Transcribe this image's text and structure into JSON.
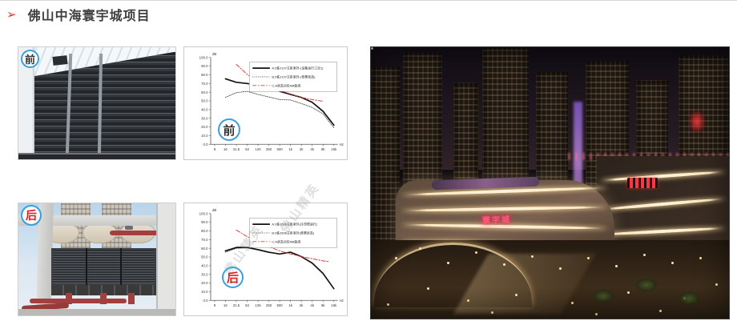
{
  "title": {
    "bullet": "➢",
    "text": "佛山中海寰宇城项目"
  },
  "colors": {
    "title_text": "#3f3f3f",
    "accent_red": "#e8372c",
    "badge_ring_blue": "#3aa0dc",
    "badge_before_text": "#333333",
    "badge_after_text": "#e02020",
    "chart_line_black": "#111111",
    "chart_line_red": "#e23b3b"
  },
  "photos": {
    "before": {
      "badge_label": "前"
    },
    "after": {
      "badge_label": "后"
    },
    "mall": {
      "sign_text": "寰宇城"
    }
  },
  "watermark": {
    "text": "佛山精英"
  },
  "chart_data": [
    {
      "type": "line",
      "badge_label": "前",
      "y_unit": "dB",
      "x_unit": "Hz",
      "ylim": [
        0,
        100
      ],
      "y_ticks": [
        "0.0",
        "10.0",
        "20.0",
        "30.0",
        "40.0",
        "50.0",
        "60.0",
        "70.0",
        "80.0",
        "90.0",
        "100.0"
      ],
      "x_categories": [
        "8",
        "16",
        "31.5",
        "63",
        "125",
        "250",
        "500",
        "1k",
        "2k",
        "4k",
        "8k",
        "16k"
      ],
      "legend_position": "top-right",
      "grid": false,
      "series": [
        {
          "name": "A:2栋2107主卧室外-(设备运行工况1)",
          "style": "solid-black",
          "x_indices": [
            1,
            2,
            3,
            4,
            5,
            6,
            7,
            8,
            9,
            10,
            11
          ],
          "values": [
            75.5,
            71.5,
            70,
            68,
            64.5,
            61,
            57.5,
            54,
            48.5,
            38,
            22
          ]
        },
        {
          "name": "B:2栋2107主卧室外-(背景状态)",
          "style": "dotted-black",
          "x_indices": [
            1,
            2,
            3,
            4,
            5,
            6,
            7,
            8,
            9,
            10,
            11
          ],
          "values": [
            54,
            59.5,
            61,
            57.5,
            54.5,
            51.5,
            51,
            47,
            42.5,
            35,
            19
          ]
        },
        {
          "name": "C:A状态对应NR曲线",
          "style": "dashdot-red",
          "x_indices": [
            2,
            3,
            4,
            5,
            6,
            7,
            8,
            9,
            10
          ],
          "values": [
            92,
            80.5,
            71.5,
            66,
            62,
            58,
            54,
            51.5,
            49.5
          ]
        }
      ]
    },
    {
      "type": "line",
      "badge_label": "后",
      "y_unit": "dB",
      "x_unit": "Hz",
      "ylim": [
        0,
        100
      ],
      "y_ticks": [
        "0.0",
        "10.0",
        "20.0",
        "30.0",
        "40.0",
        "50.0",
        "60.0",
        "70.0",
        "80.0",
        "90.0",
        "100.0"
      ],
      "x_categories": [
        "8",
        "16",
        "31.5",
        "63",
        "125",
        "250",
        "500",
        "1k",
        "2k",
        "4k",
        "8k",
        "16k"
      ],
      "legend_position": "top-right",
      "grid": false,
      "series": [
        {
          "name": "A:2栋2606主卧室外(冷却塔运行)",
          "style": "solid-black",
          "x_indices": [
            1,
            2,
            3,
            4,
            5,
            6,
            7,
            8,
            9,
            10,
            11
          ],
          "values": [
            57,
            61,
            61,
            58.5,
            55.5,
            53.5,
            55.5,
            50.5,
            43,
            31,
            13.5
          ]
        },
        {
          "name": "B:2栋2606主卧室外(背景状态)",
          "style": "dotted-black",
          "x_indices": [
            1,
            2,
            3,
            4,
            5,
            6,
            7,
            8,
            9,
            10,
            11
          ],
          "values": [
            55.5,
            60,
            60.5,
            58,
            55,
            53.5,
            55,
            50,
            42.5,
            30.5,
            13
          ]
        },
        {
          "name": "C:A状态对应NR曲线",
          "style": "dashdot-red",
          "x_indices": [
            2,
            3,
            4,
            5,
            6,
            7,
            8,
            9,
            10,
            10.6
          ],
          "values": [
            81,
            73.5,
            67.5,
            62,
            57,
            53.5,
            50.5,
            48,
            45.5,
            44.5
          ]
        }
      ]
    }
  ]
}
